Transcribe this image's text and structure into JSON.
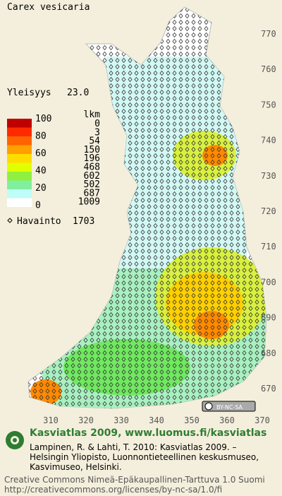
{
  "header": {
    "title": "Carex vesicaria"
  },
  "stats": {
    "label": "Yleisyys",
    "value": "23.0"
  },
  "legend": {
    "scale_labels": [
      "100",
      "80",
      "60",
      "40",
      "20",
      "0"
    ],
    "count_header": "lkm",
    "counts": [
      "0",
      "3",
      "54",
      "150",
      "196",
      "468",
      "602",
      "502",
      "687",
      "1009"
    ],
    "observation_label": "Havainto",
    "observation_count": "1703"
  },
  "axes": {
    "y_labels": [
      "770",
      "760",
      "750",
      "740",
      "730",
      "720",
      "710",
      "700",
      "690",
      "680",
      "670"
    ],
    "x_labels": [
      "310",
      "320",
      "330",
      "340",
      "350",
      "360",
      "370"
    ]
  },
  "badge": "BY-NC-SA",
  "footer": {
    "brand": "Kasviatlas 2009, www.luomus.fi/kasviatlas",
    "citation": [
      "Lampinen, R. & Lahti, T. 2010: Kasviatlas 2009. –",
      "Helsingin Yliopisto, Luonnontieteellinen keskusmuseo,",
      "Kasvimuseo, Helsinki."
    ],
    "license": "Creative Commons Nimeä-Epäkaupallinen-Tarttuva 1.0 Suomi",
    "url": "http://creativecommons.org/licenses/by-nc-sa/1.0/fi"
  }
}
